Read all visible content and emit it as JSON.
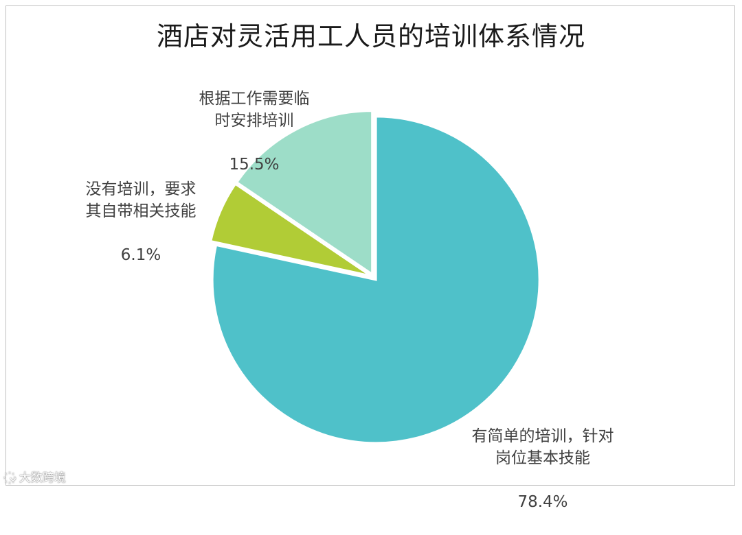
{
  "chart_data": {
    "type": "pie",
    "title": "酒店对灵活用工人员的培训体系情况",
    "slices": [
      {
        "label": "有简单的培训，针对\n岗位基本技能",
        "value": 78.4,
        "display": "78.4%",
        "color": "#4fc1c9"
      },
      {
        "label": "没有培训，要求\n其自带相关技能",
        "value": 6.1,
        "display": "6.1%",
        "color": "#b1cc36"
      },
      {
        "label": "根据工作需要临\n时安排培训",
        "value": 15.5,
        "display": "15.5%",
        "color": "#9dddc8"
      }
    ]
  },
  "watermark": {
    "logo": "꙰ᴗ",
    "text": "大数跨境"
  }
}
